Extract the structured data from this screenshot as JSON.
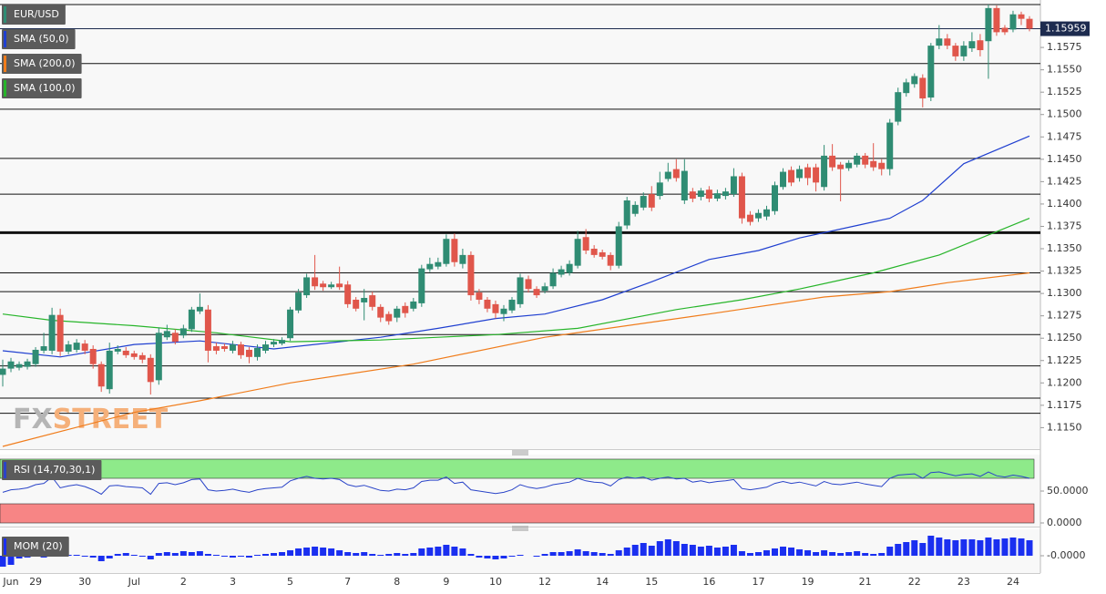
{
  "chart_data": [
    {
      "type": "candlestick",
      "title": "EUR/USD",
      "up_color": "#2f8c73",
      "down_color": "#e0564b",
      "categories": [
        null,
        "Jun",
        null,
        null,
        "29",
        null,
        null,
        null,
        null,
        null,
        "30",
        null,
        null,
        null,
        null,
        null,
        "Jul",
        null,
        null,
        null,
        null,
        null,
        "2",
        null,
        null,
        null,
        null,
        null,
        "3",
        null,
        null,
        null,
        null,
        null,
        null,
        "5",
        null,
        null,
        null,
        null,
        null,
        null,
        "7",
        null,
        null,
        null,
        null,
        null,
        "8",
        null,
        null,
        null,
        null,
        null,
        "9",
        null,
        null,
        null,
        null,
        null,
        "10",
        null,
        null,
        null,
        null,
        null,
        "12",
        null,
        null,
        null,
        null,
        null,
        null,
        "14",
        null,
        null,
        null,
        null,
        null,
        "15",
        null,
        null,
        null,
        null,
        null,
        null,
        "16",
        null,
        null,
        null,
        null,
        null,
        "17",
        null,
        null,
        null,
        null,
        null,
        "19",
        null,
        null,
        null,
        null,
        null,
        null,
        "21",
        null,
        null,
        null,
        null,
        null,
        "22",
        null,
        null,
        null,
        null,
        null,
        "23",
        null,
        null,
        null,
        null,
        null,
        "24",
        null,
        null
      ],
      "open": [
        1.1209,
        1.1216,
        1.1217,
        1.1218,
        1.1221,
        1.1236,
        1.1236,
        1.1276,
        1.1235,
        1.1237,
        1.1244,
        1.1238,
        1.1221,
        1.1193,
        1.1235,
        1.1236,
        1.1233,
        1.1231,
        1.1228,
        1.1203,
        1.1251,
        1.1256,
        1.1253,
        1.126,
        1.128,
        1.1282,
        1.1241,
        1.1241,
        1.1236,
        1.1243,
        1.1237,
        1.1229,
        1.1236,
        1.1243,
        1.1244,
        1.125,
        1.1281,
        1.1298,
        1.1318,
        1.1311,
        1.1307,
        1.1311,
        1.131,
        1.1293,
        1.129,
        1.1298,
        1.1285,
        1.1277,
        1.1273,
        1.1286,
        1.1283,
        1.1289,
        1.1327,
        1.133,
        1.1333,
        1.1361,
        1.1333,
        1.1343,
        1.1301,
        1.1293,
        1.1288,
        1.1277,
        1.1281,
        1.1288,
        1.1316,
        1.1305,
        1.1303,
        1.1308,
        1.1321,
        1.1323,
        1.1331,
        1.1363,
        1.135,
        1.1346,
        1.1343,
        1.1331,
        1.1376,
        1.1389,
        1.1396,
        1.1411,
        1.1409,
        1.1428,
        1.1439,
        1.1404,
        1.1414,
        1.1408,
        1.1416,
        1.1406,
        1.1409,
        1.1411,
        1.1431,
        1.1388,
        1.1384,
        1.1386,
        1.1392,
        1.1419,
        1.1438,
        1.1429,
        1.1441,
        1.1441,
        1.1419,
        1.1454,
        1.1444,
        1.144,
        1.1444,
        1.1454,
        1.1448,
        1.1446,
        1.1439,
        1.1492,
        1.1524,
        1.1534,
        1.1541,
        1.1519,
        1.1577,
        1.1585,
        1.1577,
        1.1565,
        1.1574,
        1.1583,
        1.1582,
        1.1619,
        1.1597,
        1.1595,
        1.1612,
        1.1607
      ],
      "high": [
        1.1226,
        1.1228,
        1.1224,
        1.1227,
        1.124,
        1.1256,
        1.1284,
        1.1283,
        1.1247,
        1.1249,
        1.1248,
        1.1242,
        1.1224,
        1.1245,
        1.1242,
        1.124,
        1.1236,
        1.1234,
        1.1232,
        1.1262,
        1.1265,
        1.126,
        1.1265,
        1.1285,
        1.13,
        1.1287,
        1.1245,
        1.1244,
        1.1247,
        1.1246,
        1.124,
        1.1243,
        1.1247,
        1.1249,
        1.1251,
        1.1285,
        1.1305,
        1.1322,
        1.1343,
        1.1314,
        1.1313,
        1.133,
        1.1314,
        1.1296,
        1.1305,
        1.1302,
        1.1288,
        1.128,
        1.1286,
        1.129,
        1.1295,
        1.1332,
        1.134,
        1.134,
        1.1366,
        1.1367,
        1.135,
        1.1347,
        1.1305,
        1.1296,
        1.1292,
        1.1287,
        1.1296,
        1.1322,
        1.132,
        1.1308,
        1.1312,
        1.1328,
        1.1331,
        1.1337,
        1.137,
        1.1372,
        1.1354,
        1.1349,
        1.1346,
        1.138,
        1.1408,
        1.1403,
        1.1413,
        1.142,
        1.1436,
        1.1446,
        1.145,
        1.145,
        1.1418,
        1.1418,
        1.142,
        1.1416,
        1.1418,
        1.144,
        1.1435,
        1.1392,
        1.1394,
        1.1398,
        1.1425,
        1.144,
        1.1442,
        1.1443,
        1.1445,
        1.1445,
        1.1466,
        1.1467,
        1.1447,
        1.1449,
        1.1457,
        1.1457,
        1.1468,
        1.145,
        1.1495,
        1.153,
        1.154,
        1.1546,
        1.1545,
        1.158,
        1.16,
        1.159,
        1.158,
        1.1582,
        1.1592,
        1.159,
        1.1623,
        1.1622,
        1.16,
        1.1616,
        1.1615,
        1.161
      ],
      "low": [
        1.1196,
        1.1212,
        1.1214,
        1.1215,
        1.1218,
        1.1233,
        1.1232,
        1.123,
        1.1232,
        1.1234,
        1.1232,
        1.1216,
        1.119,
        1.1188,
        1.1232,
        1.1228,
        1.1226,
        1.1222,
        1.1187,
        1.1198,
        1.1248,
        1.1243,
        1.125,
        1.1257,
        1.1277,
        1.1223,
        1.1232,
        1.1235,
        1.1233,
        1.1227,
        1.1222,
        1.1225,
        1.1233,
        1.124,
        1.1242,
        1.1247,
        1.1278,
        1.1295,
        1.1304,
        1.1303,
        1.1305,
        1.1304,
        1.1284,
        1.128,
        1.127,
        1.1281,
        1.1268,
        1.1265,
        1.1268,
        1.1273,
        1.128,
        1.1285,
        1.1324,
        1.1327,
        1.133,
        1.133,
        1.1328,
        1.1292,
        1.1288,
        1.1279,
        1.1272,
        1.1269,
        1.1278,
        1.1284,
        1.1301,
        1.1295,
        1.13,
        1.1305,
        1.1318,
        1.132,
        1.1328,
        1.1344,
        1.134,
        1.1338,
        1.1326,
        1.1328,
        1.1372,
        1.1386,
        1.1393,
        1.1392,
        1.1405,
        1.1425,
        1.1425,
        1.14,
        1.1402,
        1.1404,
        1.1402,
        1.1403,
        1.1405,
        1.1408,
        1.1378,
        1.1376,
        1.138,
        1.1382,
        1.1388,
        1.1416,
        1.142,
        1.1425,
        1.1421,
        1.1414,
        1.1415,
        1.1437,
        1.1403,
        1.1437,
        1.1441,
        1.144,
        1.1437,
        1.1432,
        1.1432,
        1.1488,
        1.152,
        1.153,
        1.1508,
        1.1515,
        1.1573,
        1.1573,
        1.156,
        1.156,
        1.157,
        1.1565,
        1.154,
        1.1588,
        1.1589,
        1.1592,
        1.16,
        1.1593
      ],
      "close": [
        1.1216,
        1.1224,
        1.1221,
        1.1224,
        1.1237,
        1.1241,
        1.1276,
        1.1235,
        1.1243,
        1.1245,
        1.1236,
        1.1221,
        1.1196,
        1.1236,
        1.1238,
        1.1231,
        1.1229,
        1.1226,
        1.1201,
        1.1256,
        1.1258,
        1.1246,
        1.1261,
        1.1282,
        1.1285,
        1.1236,
        1.1236,
        1.1238,
        1.1243,
        1.1231,
        1.1229,
        1.1239,
        1.1243,
        1.1246,
        1.1248,
        1.1282,
        1.1301,
        1.1318,
        1.1308,
        1.1307,
        1.131,
        1.1307,
        1.1288,
        1.1283,
        1.1295,
        1.1285,
        1.1273,
        1.1269,
        1.1283,
        1.1278,
        1.1291,
        1.1328,
        1.1333,
        1.1335,
        1.1361,
        1.1335,
        1.1343,
        1.1298,
        1.1293,
        1.1283,
        1.1278,
        1.1283,
        1.1293,
        1.1318,
        1.1305,
        1.1298,
        1.1308,
        1.1323,
        1.1327,
        1.1333,
        1.1361,
        1.1348,
        1.1343,
        1.1341,
        1.1331,
        1.1375,
        1.1404,
        1.1399,
        1.1409,
        1.1396,
        1.1424,
        1.1436,
        1.1429,
        1.1437,
        1.1406,
        1.1415,
        1.1406,
        1.1412,
        1.1414,
        1.1431,
        1.1384,
        1.138,
        1.139,
        1.1394,
        1.1421,
        1.1436,
        1.1424,
        1.1439,
        1.1429,
        1.1424,
        1.1454,
        1.1441,
        1.1439,
        1.1446,
        1.1454,
        1.1444,
        1.1441,
        1.1439,
        1.1491,
        1.1525,
        1.1536,
        1.1543,
        1.1518,
        1.1577,
        1.1585,
        1.1577,
        1.1565,
        1.1577,
        1.1582,
        1.1572,
        1.1619,
        1.1592,
        1.1592,
        1.1612,
        1.1607,
        1.1596
      ],
      "ylim": [
        1.1128,
        1.1626
      ],
      "yticks": [
        {
          "value": 1.1575,
          "label": "1.1575"
        },
        {
          "value": 1.155,
          "label": "1.1550"
        },
        {
          "value": 1.1525,
          "label": "1.1525"
        },
        {
          "value": 1.15,
          "label": "1.1500"
        },
        {
          "value": 1.1475,
          "label": "1.1475"
        },
        {
          "value": 1.145,
          "label": "1.1450"
        },
        {
          "value": 1.1425,
          "label": "1.1425"
        },
        {
          "value": 1.14,
          "label": "1.1400"
        },
        {
          "value": 1.1375,
          "label": "1.1375"
        },
        {
          "value": 1.135,
          "label": "1.1350"
        },
        {
          "value": 1.1325,
          "label": "1.1325"
        },
        {
          "value": 1.13,
          "label": "1.1300"
        },
        {
          "value": 1.1275,
          "label": "1.1275"
        },
        {
          "value": 1.125,
          "label": "1.1250"
        },
        {
          "value": 1.1225,
          "label": "1.1225"
        },
        {
          "value": 1.12,
          "label": "1.1200"
        },
        {
          "value": 1.1175,
          "label": "1.1175"
        },
        {
          "value": 1.115,
          "label": "1.1150"
        }
      ],
      "levels": [
        1.1623,
        1.1557,
        1.1506,
        1.1451,
        1.1411,
        1.1368,
        1.1323,
        1.1302,
        1.1254,
        1.1219,
        1.1183,
        1.1166
      ],
      "level_widths": [
        1,
        1,
        1,
        1,
        1,
        3,
        1,
        1,
        1,
        1,
        1,
        1
      ],
      "last_price": 1.15959,
      "last_price_color": "#1d2b4f",
      "watermark": [
        "FX",
        "STREET"
      ],
      "overlays": [
        {
          "name": "SMA (50,0)",
          "color": "#1f3fd0",
          "x": [
            0,
            7,
            16,
            24,
            33,
            46,
            53,
            60,
            66,
            73,
            79,
            86,
            92,
            97,
            104,
            108,
            112,
            117,
            125
          ],
          "values": [
            1.1236,
            1.1229,
            1.1243,
            1.1247,
            1.1238,
            1.1251,
            1.1261,
            1.1272,
            1.1277,
            1.1293,
            1.1313,
            1.1338,
            1.1348,
            1.1362,
            1.1376,
            1.1384,
            1.1404,
            1.1445,
            1.1476
          ]
        },
        {
          "name": "SMA (200,0)",
          "color": "#f07c1b",
          "x": [
            0,
            16,
            24,
            35,
            50,
            66,
            86,
            100,
            108,
            115,
            125
          ],
          "values": [
            1.1129,
            1.1167,
            1.118,
            1.12,
            1.1221,
            1.1251,
            1.1277,
            1.1296,
            1.1302,
            1.1312,
            1.1323
          ]
        },
        {
          "name": "SMA (100,0)",
          "color": "#27b52a",
          "x": [
            0,
            6,
            16,
            26,
            35,
            46,
            53,
            60,
            70,
            82,
            90,
            97,
            106,
            114,
            125
          ],
          "values": [
            1.1277,
            1.127,
            1.1264,
            1.1256,
            1.1246,
            1.1248,
            1.1251,
            1.1254,
            1.1261,
            1.1282,
            1.1293,
            1.1305,
            1.1323,
            1.1343,
            1.1384
          ]
        }
      ]
    },
    {
      "type": "line",
      "title": "RSI (14,70,30,1)",
      "color": "#2a44c8",
      "overbought": 70,
      "oversold": 30,
      "overbought_color": "#8eea8a",
      "oversold_color": "#f78585",
      "values": [
        48,
        52,
        53,
        55,
        60,
        62,
        72,
        55,
        58,
        60,
        57,
        52,
        45,
        58,
        59,
        57,
        56,
        55,
        45,
        62,
        63,
        60,
        63,
        68,
        69,
        52,
        50,
        51,
        53,
        50,
        48,
        52,
        54,
        55,
        56,
        66,
        70,
        73,
        70,
        69,
        70,
        68,
        60,
        57,
        59,
        55,
        51,
        50,
        53,
        52,
        55,
        65,
        67,
        67,
        72,
        62,
        64,
        52,
        50,
        48,
        46,
        48,
        52,
        60,
        56,
        54,
        56,
        60,
        62,
        64,
        70,
        66,
        64,
        63,
        58,
        68,
        72,
        70,
        72,
        67,
        70,
        72,
        69,
        70,
        64,
        66,
        63,
        65,
        66,
        68,
        54,
        52,
        54,
        56,
        62,
        65,
        62,
        64,
        61,
        58,
        65,
        61,
        60,
        62,
        64,
        61,
        59,
        57,
        70,
        75,
        76,
        77,
        70,
        79,
        80,
        77,
        74,
        76,
        77,
        73,
        80,
        74,
        72,
        75,
        73,
        70
      ],
      "ylim": [
        0,
        100
      ],
      "yticks": [
        {
          "value": 50,
          "label": "50.0000"
        },
        {
          "value": 0,
          "label": "0.0000"
        }
      ]
    },
    {
      "type": "bar",
      "title": "MOM (20)",
      "color": "#1a2ff0",
      "values": [
        -0.012,
        -0.01,
        -0.003,
        -0.002,
        -0.001,
        -0.002,
        -0.001,
        0,
        0.001,
        0.001,
        -0.001,
        -0.002,
        -0.006,
        -0.003,
        0.002,
        0.003,
        0.001,
        -0.001,
        -0.004,
        0.003,
        0.004,
        0.003,
        0.005,
        0.004,
        0.005,
        0.002,
        0.001,
        -0.001,
        -0.002,
        -0.001,
        -0.002,
        0.001,
        0.002,
        0.003,
        0.004,
        0.006,
        0.008,
        0.009,
        0.01,
        0.009,
        0.008,
        0.006,
        0.004,
        0.003,
        0.004,
        0.002,
        0.001,
        0.002,
        0.003,
        0.002,
        0.003,
        0.008,
        0.009,
        0.01,
        0.012,
        0.01,
        0.008,
        0.002,
        -0.002,
        -0.003,
        -0.004,
        -0.003,
        -0.001,
        0.001,
        0,
        -0.001,
        0.002,
        0.004,
        0.004,
        0.005,
        0.007,
        0.005,
        0.004,
        0.003,
        0.002,
        0.006,
        0.009,
        0.012,
        0.014,
        0.011,
        0.016,
        0.018,
        0.016,
        0.013,
        0.012,
        0.01,
        0.011,
        0.009,
        0.01,
        0.012,
        0.005,
        0.003,
        0.004,
        0.006,
        0.008,
        0.01,
        0.009,
        0.007,
        0.006,
        0.004,
        0.006,
        0.004,
        0.003,
        0.004,
        0.005,
        0.003,
        0.002,
        0.003,
        0.01,
        0.013,
        0.015,
        0.017,
        0.014,
        0.022,
        0.02,
        0.018,
        0.017,
        0.018,
        0.018,
        0.017,
        0.02,
        0.018,
        0.019,
        0.02,
        0.019,
        0.017
      ],
      "ylim": [
        -0.018,
        0.028
      ],
      "yticks": [
        {
          "value": 0,
          "label": "-0.0000"
        }
      ]
    }
  ]
}
